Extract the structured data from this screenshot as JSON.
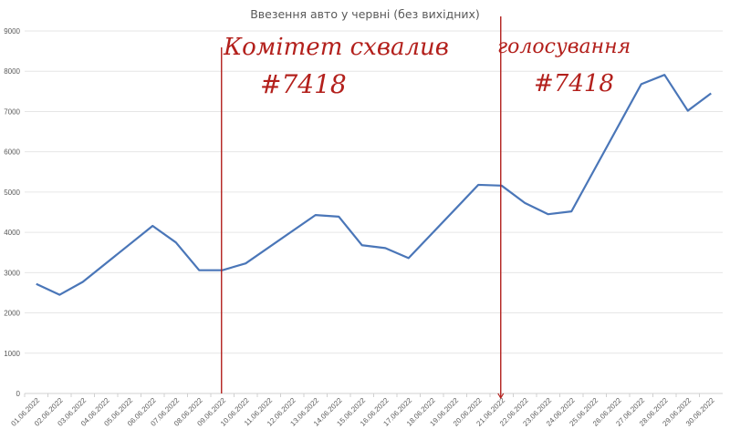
{
  "chart_data": {
    "type": "line",
    "title": "Ввезення авто у червні (без вихідних)",
    "xlabel": "",
    "ylabel": "",
    "ylim": [
      0,
      9000
    ],
    "yticks": [
      0,
      1000,
      2000,
      3000,
      4000,
      5000,
      6000,
      7000,
      8000,
      9000
    ],
    "grid": true,
    "categories": [
      "01.06.2022",
      "02.06.2022",
      "03.06.2022",
      "04.06.2022",
      "05.06.2022",
      "06.06.2022",
      "07.06.2022",
      "08.06.2022",
      "09.06.2022",
      "10.06.2022",
      "11.06.2022",
      "12.06.2022",
      "13.06.2022",
      "14.06.2022",
      "15.06.2022",
      "16.06.2022",
      "17.06.2022",
      "18.06.2022",
      "19.06.2022",
      "20.06.2022",
      "21.06.2022",
      "22.06.2022",
      "23.06.2022",
      "24.06.2022",
      "25.06.2022",
      "26.06.2022",
      "27.06.2022",
      "28.06.2022",
      "29.06.2022",
      "30.06.2022"
    ],
    "series": [
      {
        "color": "#4a76b8",
        "values": [
          2720,
          2450,
          2770,
          null,
          null,
          4160,
          3750,
          3060,
          3060,
          3230,
          null,
          null,
          4430,
          4390,
          3680,
          3610,
          3360,
          null,
          null,
          5180,
          5160,
          4730,
          4450,
          4520,
          null,
          null,
          7680,
          7910,
          7020,
          7450
        ]
      }
    ],
    "annotations": [
      {
        "category": "09.06.2022",
        "lines": [
          "Комітет схвалив",
          "#7418"
        ],
        "color": "#b3201c"
      },
      {
        "category": "21.06.2022",
        "lines": [
          "голосування",
          "#7418"
        ],
        "color": "#b3201c"
      }
    ]
  }
}
